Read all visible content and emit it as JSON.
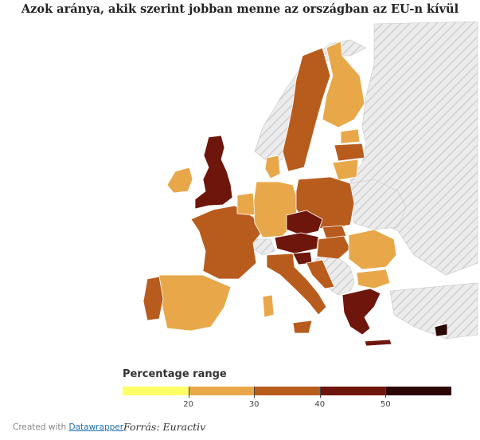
{
  "title": "Azok aránya, akik szerint jobban menne az országban az EU-n kívül",
  "legend": {
    "title": "Percentage range",
    "colors": [
      "#ffff66",
      "#e8a84a",
      "#b85c1e",
      "#6e160c",
      "#2a0604"
    ],
    "ticks": [
      "20",
      "30",
      "40",
      "50"
    ]
  },
  "footer": {
    "created_with": "Created with",
    "tool": "Datawrapper",
    "source": "Forrás: Euractiv"
  },
  "map_colors": {
    "nodata": "#e6e6e6",
    "range_20_30": "#e8a84a",
    "range_30_40": "#b85c1e",
    "range_40_50": "#6e160c",
    "range_50_plus": "#2a0604"
  }
}
